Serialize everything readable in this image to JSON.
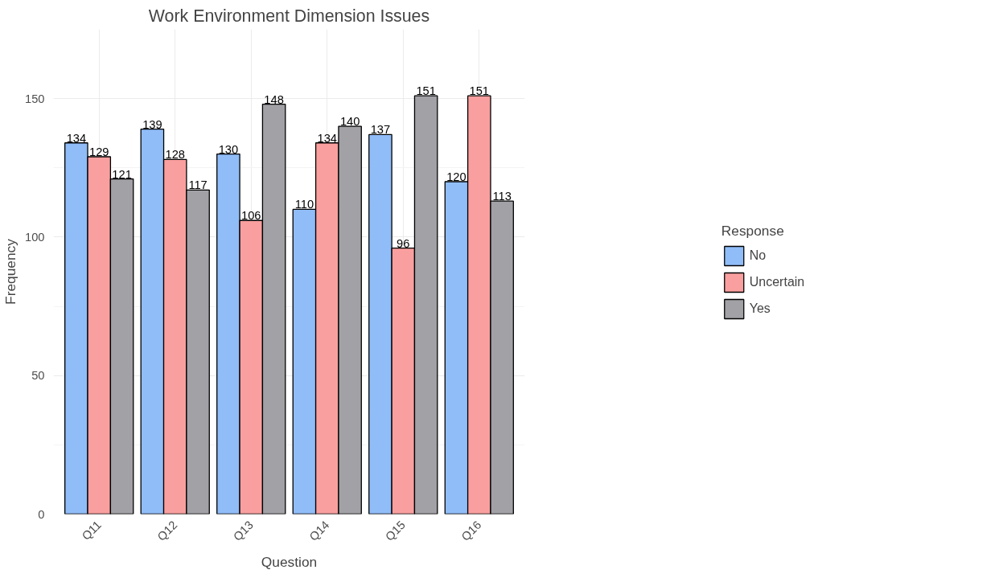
{
  "chart_data": {
    "type": "bar",
    "title": "Work Environment Dimension Issues",
    "xlabel": "Question",
    "ylabel": "Frequency",
    "legend_title": "Response",
    "categories": [
      "Q11",
      "Q12",
      "Q13",
      "Q14",
      "Q15",
      "Q16"
    ],
    "series": [
      {
        "name": "No",
        "color": "#90bdf8",
        "values": [
          134,
          139,
          130,
          110,
          137,
          120
        ]
      },
      {
        "name": "Uncertain",
        "color": "#fa9f9f",
        "values": [
          129,
          128,
          106,
          134,
          96,
          151
        ]
      },
      {
        "name": "Yes",
        "color": "#a1a1a6",
        "values": [
          121,
          117,
          148,
          140,
          151,
          113
        ]
      }
    ],
    "ylim": [
      0,
      175
    ],
    "yticks": [
      0,
      50,
      100,
      150
    ],
    "grid": true,
    "legend": "right",
    "data_labels": true
  }
}
